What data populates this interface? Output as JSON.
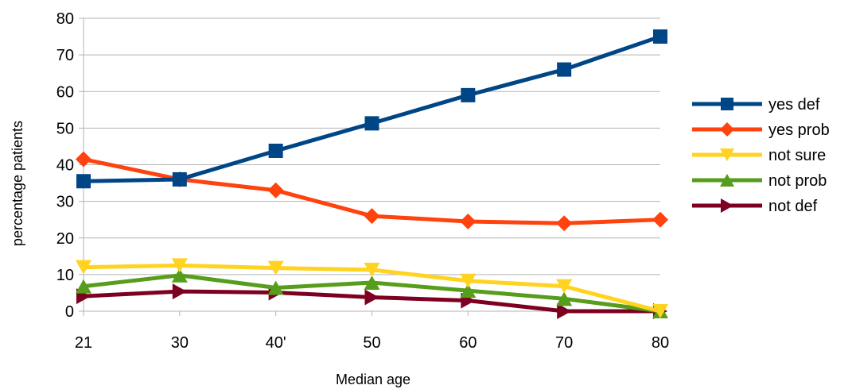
{
  "chart_data": {
    "type": "line",
    "title": "",
    "xlabel": "Median age",
    "ylabel": "percentage patients",
    "categories": [
      "21",
      "30",
      "40'",
      "50",
      "60",
      "70",
      "80"
    ],
    "ylim": [
      0,
      80
    ],
    "yticks": [
      0,
      10,
      20,
      30,
      40,
      50,
      60,
      70,
      80
    ],
    "grid": "horizontal",
    "legend": "right",
    "series": [
      {
        "name": "yes def",
        "color": "#004586",
        "marker": "square",
        "values": [
          35.5,
          36,
          43.8,
          51.3,
          59,
          66,
          75
        ]
      },
      {
        "name": "yes prob",
        "color": "#ff420e",
        "marker": "diamond",
        "values": [
          41.5,
          36,
          33,
          26,
          24.5,
          24,
          25
        ]
      },
      {
        "name": "not sure",
        "color": "#ffd320",
        "marker": "triangle-down",
        "values": [
          12,
          12.5,
          11.8,
          11.3,
          8.3,
          6.8,
          0
        ]
      },
      {
        "name": "not prob",
        "color": "#579d1c",
        "marker": "triangle-up",
        "values": [
          6.8,
          9.8,
          6.4,
          7.8,
          5.6,
          3.4,
          0
        ]
      },
      {
        "name": "not def",
        "color": "#7e0021",
        "marker": "triangle-right",
        "values": [
          4.1,
          5.4,
          5.1,
          3.8,
          2.9,
          0,
          0
        ]
      }
    ]
  }
}
